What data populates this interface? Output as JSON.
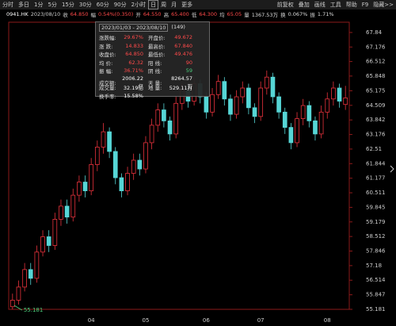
{
  "toolbar": {
    "left": [
      "分时",
      "多日",
      "1分",
      "5分",
      "15分",
      "30分",
      "60分",
      "90分",
      "2小时",
      "日",
      "周",
      "月",
      "更多"
    ],
    "right": [
      "前复权",
      "叠加",
      "画线",
      "工具",
      "帮助",
      "F9",
      "隐藏>>"
    ]
  },
  "quote": {
    "code": "0941.HK",
    "date": "2023/08/10",
    "items": [
      {
        "label": "收",
        "value": "64.850",
        "color": "#ff4a4a"
      },
      {
        "label": "幅",
        "value": "0.54%(0.350)",
        "color": "#ff4a4a"
      },
      {
        "label": "开",
        "value": "64.550",
        "color": "#ff4a4a"
      },
      {
        "label": "高",
        "value": "65.400",
        "color": "#ff4a4a"
      },
      {
        "label": "低",
        "value": "64.300",
        "color": "#ff4a4a"
      },
      {
        "label": "均",
        "value": "65.05",
        "color": "#ff4a4a"
      },
      {
        "label": "量",
        "value": "1367.53万",
        "color": "#dddddd"
      },
      {
        "label": "换",
        "value": "0.067%",
        "color": "#dddddd"
      },
      {
        "label": "振",
        "value": "1.71%",
        "color": "#dddddd"
      }
    ]
  },
  "tooltip": {
    "range": "2023/01/03 - 2023/08/10",
    "count": "(149)",
    "rows": [
      [
        "涨跌幅:",
        "29.67%",
        "开盘价:",
        "49.672"
      ],
      [
        "涨  跌:",
        "14.833",
        "最高价:",
        "67.840"
      ],
      [
        "收盘价:",
        "64.850",
        "最低价:",
        "49.476"
      ],
      [
        "均  价:",
        "62.32",
        "阳  线:",
        "90"
      ],
      [
        "振  幅:",
        "36.71%",
        "阴  线:",
        "59"
      ],
      [
        "成交额:",
        "2006.22亿",
        "天  量:",
        "8264.57万"
      ],
      [
        "成交量:",
        "32.19亿",
        "地  量:",
        "529.11万"
      ],
      [
        "换手率:",
        "15.58%"
      ]
    ]
  },
  "chart_data": {
    "type": "candlestick",
    "up_color": "#e8323c",
    "down_color": "#56d6d6",
    "grid": false,
    "categories": [
      null,
      null,
      null,
      null,
      null,
      null,
      null,
      null,
      null,
      null,
      null,
      null,
      null,
      "04",
      null,
      null,
      null,
      null,
      null,
      null,
      null,
      null,
      "05",
      null,
      null,
      null,
      null,
      null,
      null,
      null,
      null,
      null,
      "06",
      null,
      null,
      null,
      null,
      null,
      null,
      null,
      null,
      "07",
      null,
      null,
      null,
      null,
      null,
      null,
      null,
      null,
      null,
      null,
      "08",
      null,
      null,
      null
    ],
    "open": [
      55.3,
      55.6,
      56.2,
      57.0,
      56.6,
      57.8,
      58.5,
      58.1,
      59.3,
      59.9,
      59.4,
      60.4,
      61.0,
      60.6,
      61.8,
      62.6,
      63.3,
      62.4,
      61.2,
      60.6,
      61.4,
      62.0,
      61.6,
      62.8,
      63.6,
      64.3,
      63.8,
      63.2,
      64.6,
      65.2,
      64.7,
      65.5,
      64.9,
      64.2,
      65.0,
      65.6,
      64.8,
      64.1,
      64.9,
      65.3,
      64.4,
      64.0,
      65.3,
      65.8,
      64.9,
      64.2,
      63.5,
      62.8,
      63.9,
      64.5,
      63.8,
      63.2,
      64.2,
      64.8,
      65.3,
      64.55
    ],
    "high": [
      55.9,
      56.5,
      57.3,
      57.3,
      58.1,
      58.8,
      58.8,
      59.6,
      60.2,
      60.2,
      60.7,
      61.3,
      61.3,
      62.1,
      62.9,
      63.7,
      63.5,
      62.6,
      61.4,
      61.7,
      62.3,
      62.3,
      63.1,
      63.9,
      64.6,
      64.6,
      64.0,
      64.9,
      65.5,
      65.5,
      65.8,
      65.7,
      65.1,
      65.3,
      65.9,
      65.8,
      65.0,
      65.2,
      65.6,
      65.5,
      64.6,
      65.6,
      66.1,
      66.0,
      65.1,
      64.4,
      63.7,
      64.2,
      64.8,
      64.7,
      64.0,
      64.5,
      65.1,
      65.6,
      65.5,
      65.4
    ],
    "low": [
      55.181,
      55.4,
      56.0,
      56.3,
      56.4,
      57.6,
      57.8,
      57.9,
      59.0,
      59.1,
      59.2,
      60.1,
      60.3,
      60.4,
      61.5,
      62.3,
      62.1,
      60.9,
      60.3,
      60.4,
      61.1,
      61.3,
      61.4,
      62.5,
      63.3,
      63.5,
      62.9,
      63.0,
      64.3,
      64.4,
      64.5,
      64.6,
      63.9,
      64.0,
      64.8,
      64.5,
      63.8,
      63.9,
      64.6,
      64.1,
      63.7,
      63.8,
      65.0,
      64.6,
      63.9,
      63.2,
      62.5,
      62.6,
      63.6,
      63.5,
      62.9,
      63.0,
      63.9,
      64.5,
      64.4,
      64.3
    ],
    "close": [
      55.6,
      56.2,
      57.0,
      56.6,
      57.8,
      58.5,
      58.1,
      59.3,
      59.9,
      59.4,
      60.4,
      61.0,
      60.6,
      61.8,
      62.6,
      63.3,
      62.4,
      61.2,
      60.6,
      61.4,
      62.0,
      61.6,
      62.8,
      63.6,
      64.3,
      63.8,
      63.2,
      64.6,
      65.2,
      64.7,
      65.5,
      64.9,
      64.2,
      65.0,
      65.6,
      64.8,
      64.1,
      64.9,
      65.3,
      64.4,
      64.0,
      65.3,
      65.8,
      64.9,
      64.2,
      63.5,
      62.8,
      63.9,
      64.5,
      63.8,
      63.2,
      64.2,
      64.8,
      65.3,
      64.7,
      64.85
    ],
    "ylim": [
      55.181,
      68.31
    ],
    "yticks": [
      67.84,
      67.176,
      66.512,
      65.848,
      65.175,
      64.509,
      63.842,
      63.176,
      62.51,
      61.844,
      61.177,
      60.511,
      59.845,
      59.179,
      58.512,
      57.846,
      57.18,
      56.514,
      55.847,
      55.181
    ]
  }
}
